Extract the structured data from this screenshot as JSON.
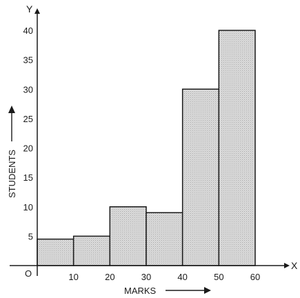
{
  "chart_data": {
    "type": "bar",
    "histogram": true,
    "bins": [
      [
        0,
        10
      ],
      [
        10,
        20
      ],
      [
        20,
        30
      ],
      [
        30,
        40
      ],
      [
        40,
        50
      ],
      [
        50,
        60
      ]
    ],
    "values": [
      4.5,
      5,
      10,
      9,
      30,
      40
    ],
    "xlabel": "MARKS",
    "ylabel": "STUDENTS",
    "x_axis_letter": "X",
    "y_axis_letter": "Y",
    "origin_label": "O",
    "xticks": [
      10,
      20,
      30,
      40,
      50,
      60
    ],
    "yticks": [
      5,
      10,
      15,
      20,
      25,
      30,
      35,
      40
    ],
    "xlim": [
      0,
      60
    ],
    "ylim": [
      0,
      40
    ],
    "grid": false,
    "bar_fill": "#d8d8d8",
    "bar_stroke": "#1a1a1a"
  }
}
